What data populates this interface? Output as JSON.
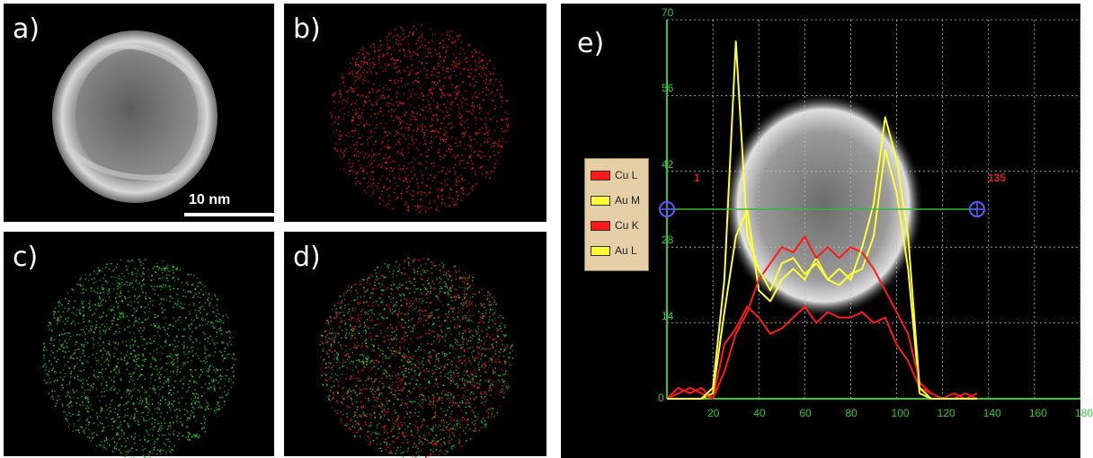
{
  "panels": {
    "a": {
      "label": "a)",
      "scale_bar": "10 nm"
    },
    "b": {
      "label": "b)"
    },
    "c": {
      "label": "c)"
    },
    "d": {
      "label": "d)"
    },
    "e": {
      "label": "e)"
    }
  },
  "colors": {
    "red": "#ff1a1a",
    "yellow": "#ffff33",
    "green_axis": "#32c832",
    "line_marker": "#5a5aff"
  },
  "chart_data": {
    "type": "line",
    "title": "",
    "xlabel": "",
    "ylabel": "",
    "xlim": [
      0,
      180
    ],
    "ylim": [
      0,
      70
    ],
    "xticks": [
      20,
      40,
      60,
      80,
      100,
      120,
      140,
      160,
      180
    ],
    "yticks": [
      0,
      14,
      28,
      42,
      56,
      70
    ],
    "legend": [
      "Cu L",
      "Au M",
      "Cu K",
      "Au L"
    ],
    "legend_placement": "left",
    "markers": {
      "start": "1",
      "end": "135",
      "y_level": 35
    },
    "series": [
      {
        "name": "Cu L",
        "color": "#ff1a1a",
        "x": [
          0,
          5,
          10,
          15,
          20,
          25,
          30,
          35,
          40,
          45,
          50,
          55,
          60,
          65,
          70,
          75,
          80,
          85,
          90,
          95,
          100,
          105,
          110,
          115,
          120,
          125,
          130,
          135
        ],
        "y": [
          0,
          2,
          1,
          2,
          0,
          10,
          13,
          17,
          15,
          12,
          13,
          15,
          17,
          14,
          16,
          15,
          15,
          16,
          14,
          15,
          10,
          7,
          2,
          1,
          0,
          1,
          0,
          1
        ]
      },
      {
        "name": "Au M",
        "color": "#ffff33",
        "x": [
          0,
          5,
          10,
          15,
          20,
          25,
          30,
          35,
          40,
          45,
          50,
          55,
          60,
          65,
          70,
          75,
          80,
          85,
          90,
          95,
          100,
          105,
          110,
          115,
          120,
          125,
          130,
          135
        ],
        "y": [
          0,
          0,
          0,
          0,
          1,
          16,
          30,
          35,
          20,
          18,
          22,
          24,
          22,
          26,
          22,
          21,
          23,
          24,
          30,
          46,
          38,
          24,
          1,
          0,
          0,
          0,
          0,
          0
        ]
      },
      {
        "name": "Cu K",
        "color": "#ff1a1a",
        "x": [
          0,
          5,
          10,
          15,
          20,
          25,
          30,
          35,
          40,
          45,
          50,
          55,
          60,
          65,
          70,
          75,
          80,
          85,
          90,
          95,
          100,
          105,
          110,
          115,
          120,
          125,
          130,
          135
        ],
        "y": [
          0,
          1,
          2,
          1,
          0,
          5,
          12,
          16,
          22,
          25,
          28,
          27,
          30,
          26,
          28,
          26,
          28,
          27,
          24,
          20,
          16,
          12,
          3,
          1,
          0,
          0,
          1,
          0
        ]
      },
      {
        "name": "Au L",
        "color": "#ffff33",
        "x": [
          0,
          5,
          10,
          15,
          20,
          25,
          30,
          35,
          40,
          45,
          50,
          55,
          60,
          65,
          70,
          75,
          80,
          85,
          90,
          95,
          100,
          105,
          110,
          115,
          120,
          125,
          130,
          135
        ],
        "y": [
          0,
          0,
          0,
          0,
          2,
          22,
          66,
          30,
          24,
          20,
          25,
          26,
          23,
          25,
          22,
          24,
          22,
          28,
          36,
          52,
          44,
          30,
          2,
          0,
          0,
          0,
          0,
          0
        ]
      }
    ]
  }
}
